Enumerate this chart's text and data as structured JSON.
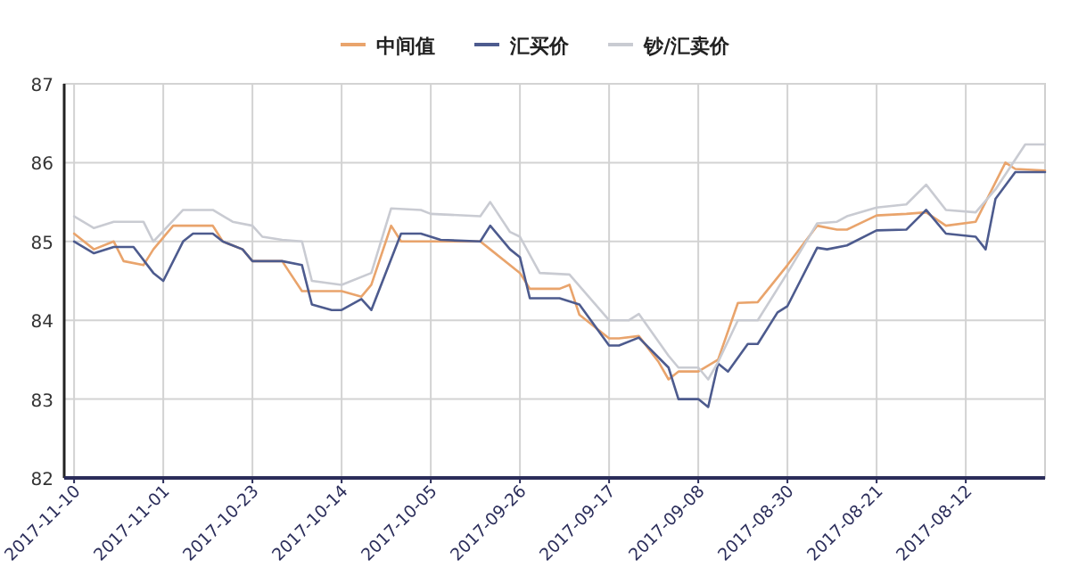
{
  "chart_data": {
    "type": "line",
    "legend": "top",
    "grid": true,
    "xlim": [
      "2017-11-11",
      "2017-08-04"
    ],
    "xticks": [
      "2017-11-10",
      "2017-11-01",
      "2017-10-23",
      "2017-10-14",
      "2017-10-05",
      "2017-09-26",
      "2017-09-17",
      "2017-09-08",
      "2017-08-30",
      "2017-08-21",
      "2017-08-12"
    ],
    "ylim": [
      82,
      87
    ],
    "yticks": [
      82,
      83,
      84,
      85,
      86,
      87
    ],
    "series": [
      {
        "name": "中间值",
        "color": "#e9a46c",
        "x": [
          "2017-11-10",
          "2017-11-08",
          "2017-11-06",
          "2017-11-05",
          "2017-11-03",
          "2017-11-02",
          "2017-10-31",
          "2017-10-27",
          "2017-10-26",
          "2017-10-24",
          "2017-10-23",
          "2017-10-20",
          "2017-10-18",
          "2017-10-17",
          "2017-10-14",
          "2017-10-12",
          "2017-10-11",
          "2017-10-09",
          "2017-10-08",
          "2017-09-30",
          "2017-09-29",
          "2017-09-26",
          "2017-09-25",
          "2017-09-22",
          "2017-09-21",
          "2017-09-20",
          "2017-09-17",
          "2017-09-16",
          "2017-09-14",
          "2017-09-12",
          "2017-09-11",
          "2017-09-10",
          "2017-09-08",
          "2017-09-06",
          "2017-09-04",
          "2017-09-02",
          "2017-08-30",
          "2017-08-27",
          "2017-08-25",
          "2017-08-24",
          "2017-08-21",
          "2017-08-18",
          "2017-08-16",
          "2017-08-14",
          "2017-08-11",
          "2017-08-08",
          "2017-08-07",
          "2017-08-04"
        ],
        "values": [
          85.1,
          84.9,
          85.0,
          84.75,
          84.7,
          84.9,
          85.2,
          85.2,
          85.0,
          84.9,
          84.75,
          84.75,
          84.37,
          84.37,
          84.37,
          84.3,
          84.45,
          85.2,
          85.0,
          85.0,
          84.9,
          84.6,
          84.4,
          84.4,
          84.45,
          84.07,
          83.77,
          83.77,
          83.8,
          83.47,
          83.25,
          83.35,
          83.35,
          83.5,
          84.22,
          84.23,
          84.7,
          85.2,
          85.15,
          85.15,
          85.33,
          85.35,
          85.37,
          85.2,
          85.25,
          86.0,
          85.92,
          85.9
        ]
      },
      {
        "name": "汇买价",
        "color": "#4d5b8e",
        "x": [
          "2017-11-10",
          "2017-11-08",
          "2017-11-06",
          "2017-11-04",
          "2017-11-02",
          "2017-11-01",
          "2017-10-30",
          "2017-10-29",
          "2017-10-27",
          "2017-10-26",
          "2017-10-24",
          "2017-10-23",
          "2017-10-20",
          "2017-10-18",
          "2017-10-17",
          "2017-10-15",
          "2017-10-14",
          "2017-10-12",
          "2017-10-11",
          "2017-10-08",
          "2017-10-06",
          "2017-10-04",
          "2017-09-30",
          "2017-09-29",
          "2017-09-27",
          "2017-09-26",
          "2017-09-25",
          "2017-09-22",
          "2017-09-20",
          "2017-09-17",
          "2017-09-16",
          "2017-09-14",
          "2017-09-11",
          "2017-09-10",
          "2017-09-08",
          "2017-09-07",
          "2017-09-06",
          "2017-09-05",
          "2017-09-03",
          "2017-09-02",
          "2017-08-31",
          "2017-08-30",
          "2017-08-27",
          "2017-08-26",
          "2017-08-24",
          "2017-08-21",
          "2017-08-18",
          "2017-08-16",
          "2017-08-14",
          "2017-08-11",
          "2017-08-10",
          "2017-08-09",
          "2017-08-07",
          "2017-08-04"
        ],
        "values": [
          85.0,
          84.85,
          84.93,
          84.93,
          84.6,
          84.5,
          85.0,
          85.1,
          85.1,
          85.0,
          84.9,
          84.75,
          84.75,
          84.7,
          84.2,
          84.13,
          84.13,
          84.27,
          84.13,
          85.1,
          85.1,
          85.02,
          85.0,
          85.2,
          84.9,
          84.8,
          84.28,
          84.28,
          84.2,
          83.68,
          83.68,
          83.78,
          83.4,
          83.0,
          83.0,
          82.9,
          83.45,
          83.35,
          83.7,
          83.7,
          84.1,
          84.18,
          84.92,
          84.9,
          84.95,
          85.14,
          85.15,
          85.4,
          85.1,
          85.06,
          84.9,
          85.54,
          85.88,
          85.88
        ]
      },
      {
        "name": "钞/汇卖价",
        "color": "#c9cbd2",
        "x": [
          "2017-11-10",
          "2017-11-08",
          "2017-11-06",
          "2017-11-03",
          "2017-11-02",
          "2017-10-30",
          "2017-10-27",
          "2017-10-25",
          "2017-10-23",
          "2017-10-22",
          "2017-10-20",
          "2017-10-18",
          "2017-10-17",
          "2017-10-14",
          "2017-10-11",
          "2017-10-09",
          "2017-10-06",
          "2017-10-05",
          "2017-09-30",
          "2017-09-29",
          "2017-09-27",
          "2017-09-26",
          "2017-09-24",
          "2017-09-21",
          "2017-09-17",
          "2017-09-15",
          "2017-09-14",
          "2017-09-11",
          "2017-09-10",
          "2017-09-08",
          "2017-09-07",
          "2017-09-06",
          "2017-09-04",
          "2017-09-02",
          "2017-08-30",
          "2017-08-27",
          "2017-08-25",
          "2017-08-24",
          "2017-08-21",
          "2017-08-18",
          "2017-08-16",
          "2017-08-14",
          "2017-08-11",
          "2017-08-09",
          "2017-08-06",
          "2017-08-04"
        ],
        "values": [
          85.32,
          85.17,
          85.25,
          85.25,
          85.0,
          85.4,
          85.4,
          85.25,
          85.2,
          85.06,
          85.02,
          85.0,
          84.5,
          84.45,
          84.6,
          85.42,
          85.4,
          85.35,
          85.32,
          85.5,
          85.12,
          85.06,
          84.6,
          84.58,
          84.0,
          84.0,
          84.08,
          83.55,
          83.4,
          83.4,
          83.25,
          83.47,
          84.0,
          84.0,
          84.6,
          85.23,
          85.25,
          85.32,
          85.43,
          85.47,
          85.72,
          85.4,
          85.37,
          85.66,
          86.23,
          86.23
        ]
      }
    ]
  }
}
